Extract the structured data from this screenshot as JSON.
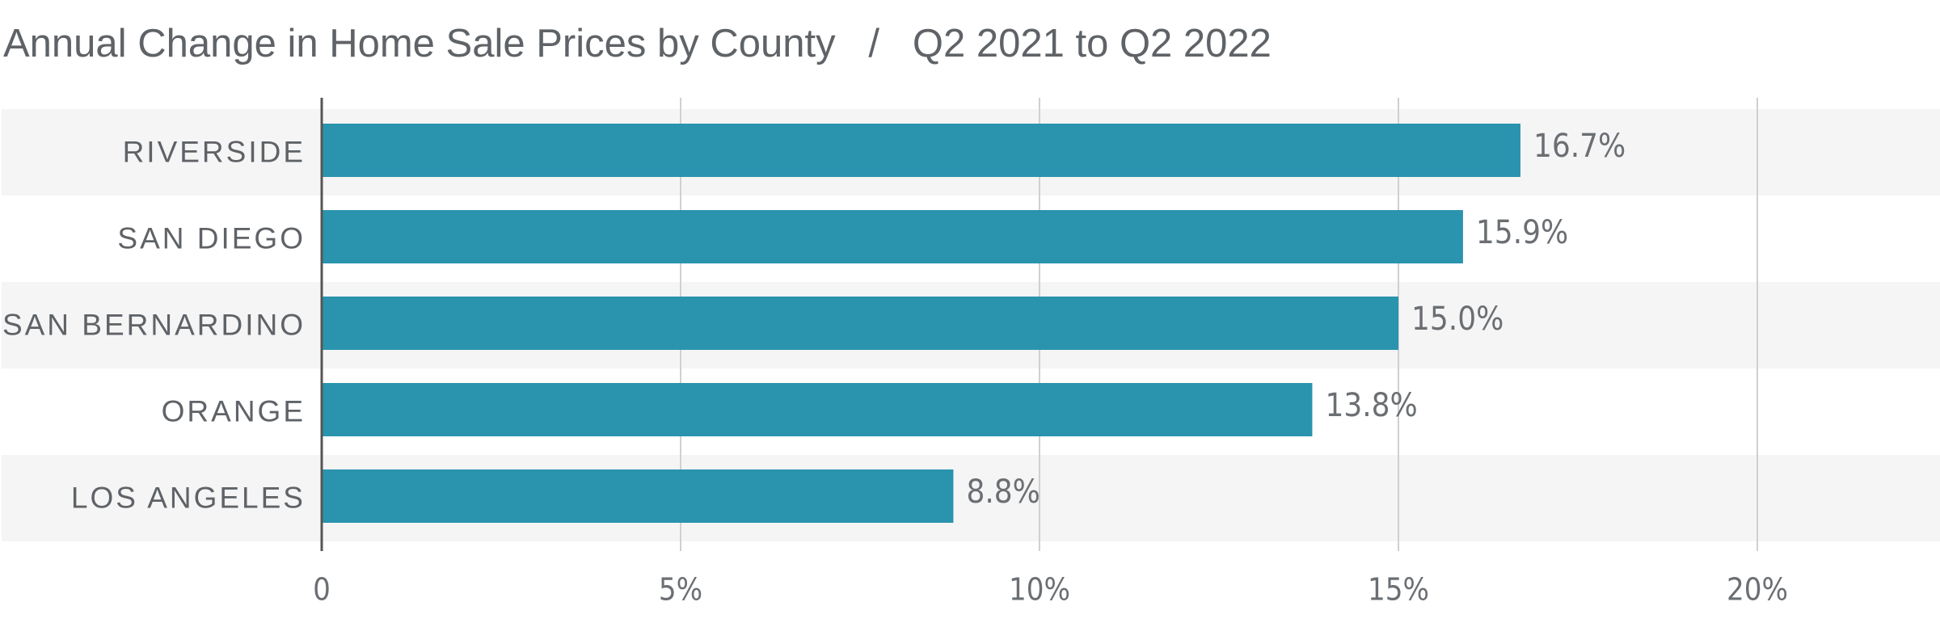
{
  "chart_data": {
    "type": "bar",
    "orientation": "horizontal",
    "title": "Annual Change in Home Sale Prices by County   /   Q2 2021 to Q2 2022",
    "categories": [
      "RIVERSIDE",
      "SAN DIEGO",
      "SAN BERNARDINO",
      "ORANGE",
      "LOS ANGELES"
    ],
    "values": [
      16.7,
      15.9,
      15.0,
      13.8,
      8.8
    ],
    "value_labels": [
      "16.7%",
      "15.9%",
      "15.0%",
      "13.8%",
      "8.8%"
    ],
    "color": "#2a93ae",
    "xlim": [
      0,
      22.5
    ],
    "xticks": [
      0,
      {
        "value": 5,
        "label": "5%"
      },
      {
        "value": 10,
        "label": "10%"
      },
      {
        "value": 15,
        "label": "15%"
      },
      {
        "value": 20,
        "label": "20%"
      }
    ],
    "grid": true
  }
}
